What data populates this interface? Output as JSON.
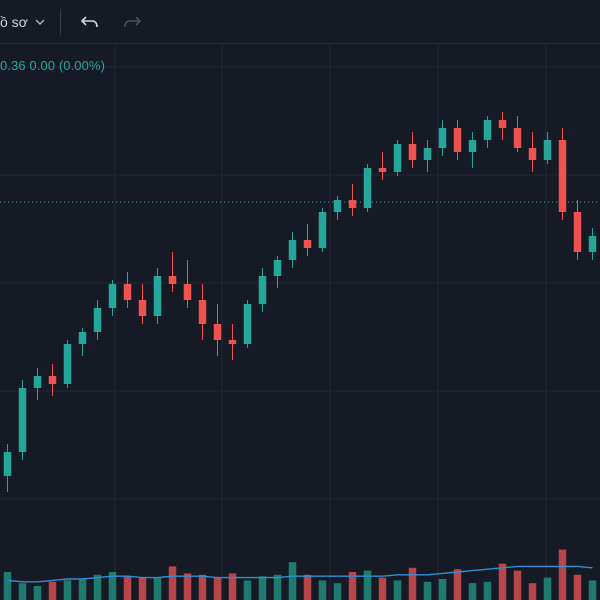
{
  "toolbar": {
    "chart_type_label": "ồ sơ",
    "chart_type_icon": "chevron-down-icon",
    "undo_icon": "undo-icon",
    "redo_icon": "redo-icon"
  },
  "legend": {
    "text": "0.36  0.00 (0.00%)",
    "color": "#26a69a"
  },
  "colors": {
    "background": "#161a25",
    "grid": "#242835",
    "up": "#26a69a",
    "down": "#ef5350",
    "volume_up": "#1f7a70",
    "volume_down": "#b8454a",
    "ma_line": "#2f8fd6",
    "price_line": "#3fa89c"
  },
  "chart_data": {
    "type": "candlestick",
    "title": "",
    "xlabel": "",
    "ylabel": "",
    "ylim": [
      0,
      100
    ],
    "volume_ylim": [
      0,
      100
    ],
    "grid": true,
    "current_price": 74.5,
    "price_line_style": "dotted",
    "candles": [
      {
        "o": 6,
        "h": 14,
        "l": 2,
        "c": 12,
        "v": 20
      },
      {
        "o": 12,
        "h": 30,
        "l": 10,
        "c": 28,
        "v": 12
      },
      {
        "o": 28,
        "h": 33,
        "l": 25,
        "c": 31,
        "v": 10
      },
      {
        "o": 31,
        "h": 34,
        "l": 26,
        "c": 29,
        "v": 13
      },
      {
        "o": 29,
        "h": 40,
        "l": 28,
        "c": 39,
        "v": 14
      },
      {
        "o": 39,
        "h": 43,
        "l": 36,
        "c": 42,
        "v": 15
      },
      {
        "o": 42,
        "h": 50,
        "l": 40,
        "c": 48,
        "v": 18
      },
      {
        "o": 48,
        "h": 55,
        "l": 46,
        "c": 54,
        "v": 20
      },
      {
        "o": 54,
        "h": 57,
        "l": 48,
        "c": 50,
        "v": 17
      },
      {
        "o": 50,
        "h": 54,
        "l": 44,
        "c": 46,
        "v": 16
      },
      {
        "o": 46,
        "h": 58,
        "l": 44,
        "c": 56,
        "v": 16
      },
      {
        "o": 56,
        "h": 62,
        "l": 52,
        "c": 54,
        "v": 24
      },
      {
        "o": 54,
        "h": 60,
        "l": 48,
        "c": 50,
        "v": 19
      },
      {
        "o": 50,
        "h": 54,
        "l": 40,
        "c": 44,
        "v": 18
      },
      {
        "o": 44,
        "h": 49,
        "l": 36,
        "c": 40,
        "v": 16
      },
      {
        "o": 40,
        "h": 44,
        "l": 35,
        "c": 39,
        "v": 19
      },
      {
        "o": 39,
        "h": 50,
        "l": 38,
        "c": 49,
        "v": 14
      },
      {
        "o": 49,
        "h": 58,
        "l": 47,
        "c": 56,
        "v": 17
      },
      {
        "o": 56,
        "h": 61,
        "l": 53,
        "c": 60,
        "v": 18
      },
      {
        "o": 60,
        "h": 67,
        "l": 58,
        "c": 65,
        "v": 27
      },
      {
        "o": 65,
        "h": 69,
        "l": 61,
        "c": 63,
        "v": 18
      },
      {
        "o": 63,
        "h": 73,
        "l": 62,
        "c": 72,
        "v": 14
      },
      {
        "o": 72,
        "h": 76,
        "l": 70,
        "c": 75,
        "v": 12
      },
      {
        "o": 75,
        "h": 79,
        "l": 71,
        "c": 73,
        "v": 20
      },
      {
        "o": 73,
        "h": 84,
        "l": 72,
        "c": 83,
        "v": 21
      },
      {
        "o": 83,
        "h": 87,
        "l": 80,
        "c": 82,
        "v": 16
      },
      {
        "o": 82,
        "h": 90,
        "l": 81,
        "c": 89,
        "v": 14
      },
      {
        "o": 89,
        "h": 92,
        "l": 83,
        "c": 85,
        "v": 23
      },
      {
        "o": 85,
        "h": 90,
        "l": 82,
        "c": 88,
        "v": 13
      },
      {
        "o": 88,
        "h": 95,
        "l": 86,
        "c": 93,
        "v": 15
      },
      {
        "o": 93,
        "h": 95,
        "l": 85,
        "c": 87,
        "v": 22
      },
      {
        "o": 87,
        "h": 92,
        "l": 83,
        "c": 90,
        "v": 12
      },
      {
        "o": 90,
        "h": 96,
        "l": 88,
        "c": 95,
        "v": 13
      },
      {
        "o": 95,
        "h": 97,
        "l": 90,
        "c": 93,
        "v": 26
      },
      {
        "o": 93,
        "h": 96,
        "l": 87,
        "c": 88,
        "v": 21
      },
      {
        "o": 88,
        "h": 92,
        "l": 82,
        "c": 85,
        "v": 12
      },
      {
        "o": 85,
        "h": 92,
        "l": 84,
        "c": 90,
        "v": 16
      },
      {
        "o": 90,
        "h": 93,
        "l": 70,
        "c": 72,
        "v": 36
      },
      {
        "o": 72,
        "h": 75,
        "l": 60,
        "c": 62,
        "v": 18
      },
      {
        "o": 62,
        "h": 68,
        "l": 60,
        "c": 66,
        "v": 14
      }
    ],
    "ma_values": [
      14,
      13,
      13,
      14,
      15,
      15,
      16,
      17,
      17,
      16,
      16,
      17,
      17,
      17,
      16,
      16,
      16,
      16,
      16,
      17,
      17,
      17,
      17,
      17,
      17,
      17,
      18,
      18,
      18,
      19,
      20,
      21,
      22,
      23,
      24,
      24,
      24,
      24,
      24,
      23
    ]
  }
}
